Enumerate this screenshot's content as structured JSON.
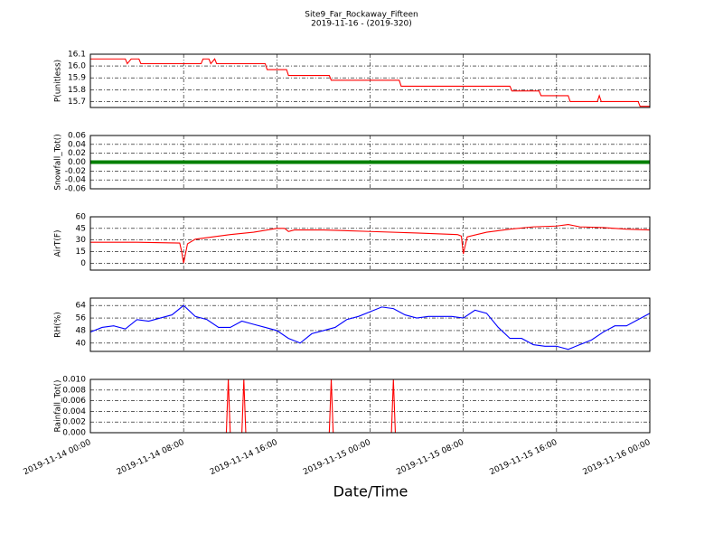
{
  "title": "Site9_Far_Rockaway_Fifteen",
  "subtitle": "2019-11-16 - (2019-320)",
  "x_label": "Date/Time",
  "chart_data": [
    {
      "type": "line",
      "y_label": "P(unitless)",
      "color": "#ff0000",
      "grid": true,
      "xlim": [
        "2019-11-14 00:00",
        "2019-11-16 00:00"
      ],
      "xticks": [
        "2019-11-14 00:00",
        "2019-11-14 08:00",
        "2019-11-14 16:00",
        "2019-11-15 00:00",
        "2019-11-15 08:00",
        "2019-11-15 16:00",
        "2019-11-16 00:00"
      ],
      "ylim": [
        15.65,
        16.1
      ],
      "yticks": [
        15.7,
        15.8,
        15.9,
        {
          "value": 16,
          "label": "16.0"
        },
        16.1
      ],
      "x": [
        "2019-11-14 00:00",
        "2019-11-14 03:00",
        "2019-11-14 03:10",
        "2019-11-14 03:30",
        "2019-11-14 04:10",
        "2019-11-14 04:20",
        "2019-11-14 09:30",
        "2019-11-14 09:40",
        "2019-11-14 10:10",
        "2019-11-14 10:20",
        "2019-11-14 10:40",
        "2019-11-14 10:50",
        "2019-11-14 15:00",
        "2019-11-14 15:10",
        "2019-11-14 16:50",
        "2019-11-14 17:00",
        "2019-11-14 20:30",
        "2019-11-14 20:40",
        "2019-11-15 02:30",
        "2019-11-15 02:40",
        "2019-11-15 12:00",
        "2019-11-15 12:10",
        "2019-11-15 14:30",
        "2019-11-15 14:40",
        "2019-11-15 17:00",
        "2019-11-15 17:10",
        "2019-11-15 19:30",
        "2019-11-15 19:40",
        "2019-11-15 19:50",
        "2019-11-15 23:00",
        "2019-11-15 23:10",
        "2019-11-16 00:00"
      ],
      "values": [
        16.06,
        16.06,
        16.02,
        16.06,
        16.06,
        16.02,
        16.02,
        16.06,
        16.06,
        16.02,
        16.06,
        16.02,
        16.02,
        15.97,
        15.97,
        15.92,
        15.92,
        15.88,
        15.88,
        15.83,
        15.83,
        15.79,
        15.79,
        15.75,
        15.75,
        15.7,
        15.7,
        15.75,
        15.7,
        15.7,
        15.66,
        15.66
      ]
    },
    {
      "type": "line",
      "y_label": "Snowfall_Tot()",
      "color": "#008000",
      "grid": true,
      "xlim": [
        "2019-11-14 00:00",
        "2019-11-16 00:00"
      ],
      "xticks": [
        "2019-11-14 00:00",
        "2019-11-14 08:00",
        "2019-11-14 16:00",
        "2019-11-15 00:00",
        "2019-11-15 08:00",
        "2019-11-15 16:00",
        "2019-11-16 00:00"
      ],
      "ylim": [
        -0.06,
        0.06
      ],
      "yticks": [
        -0.06,
        -0.04,
        -0.02,
        {
          "value": 0,
          "label": "0.00"
        },
        0.02,
        0.04,
        0.06
      ],
      "x": [
        "2019-11-14 00:00",
        "2019-11-14 04:00",
        "2019-11-14 08:00",
        "2019-11-14 12:00",
        "2019-11-14 16:00",
        "2019-11-14 20:00",
        "2019-11-15 00:00",
        "2019-11-15 04:00",
        "2019-11-15 08:00",
        "2019-11-15 12:00",
        "2019-11-15 16:00",
        "2019-11-15 20:00",
        "2019-11-16 00:00"
      ],
      "values": [
        0,
        0,
        0,
        0,
        0,
        0,
        0,
        0,
        0,
        0,
        0,
        0,
        0
      ]
    },
    {
      "type": "line",
      "y_label": "AirT(F)",
      "color": "#ff0000",
      "grid": true,
      "xlim": [
        "2019-11-14 00:00",
        "2019-11-16 00:00"
      ],
      "xticks": [
        "2019-11-14 00:00",
        "2019-11-14 08:00",
        "2019-11-14 16:00",
        "2019-11-15 00:00",
        "2019-11-15 08:00",
        "2019-11-15 16:00",
        "2019-11-16 00:00"
      ],
      "ylim": [
        -9,
        60
      ],
      "yticks": [
        0,
        15,
        30,
        45,
        60
      ],
      "x": [
        "2019-11-14 00:00",
        "2019-11-14 04:00",
        "2019-11-14 07:40",
        "2019-11-14 07:50",
        "2019-11-14 08:00",
        "2019-11-14 08:20",
        "2019-11-14 09:00",
        "2019-11-14 12:00",
        "2019-11-14 14:00",
        "2019-11-14 16:00",
        "2019-11-14 16:40",
        "2019-11-14 17:00",
        "2019-11-14 17:30",
        "2019-11-14 20:00",
        "2019-11-15 00:00",
        "2019-11-15 04:00",
        "2019-11-15 07:30",
        "2019-11-15 07:50",
        "2019-11-15 08:00",
        "2019-11-15 08:20",
        "2019-11-15 10:00",
        "2019-11-15 12:00",
        "2019-11-15 14:00",
        "2019-11-15 16:00",
        "2019-11-15 17:00",
        "2019-11-15 18:00",
        "2019-11-15 20:00",
        "2019-11-15 22:00",
        "2019-11-16 00:00"
      ],
      "values": [
        27,
        27,
        26,
        15,
        0,
        25,
        31,
        37,
        40,
        45,
        45,
        41,
        43,
        43,
        41,
        39,
        37,
        35,
        12,
        34,
        40,
        44,
        47,
        48,
        50,
        47,
        46,
        44,
        43
      ]
    },
    {
      "type": "line",
      "y_label": "RH(%)",
      "color": "#0000ff",
      "grid": true,
      "xlim": [
        "2019-11-14 00:00",
        "2019-11-16 00:00"
      ],
      "xticks": [
        "2019-11-14 00:00",
        "2019-11-14 08:00",
        "2019-11-14 16:00",
        "2019-11-15 00:00",
        "2019-11-15 08:00",
        "2019-11-15 16:00",
        "2019-11-16 00:00"
      ],
      "ylim": [
        34.7,
        68.7
      ],
      "yticks": [
        40,
        48,
        56,
        64
      ],
      "x": [
        "2019-11-14 00:00",
        "2019-11-14 01:00",
        "2019-11-14 02:00",
        "2019-11-14 03:00",
        "2019-11-14 04:00",
        "2019-11-14 05:00",
        "2019-11-14 06:00",
        "2019-11-14 07:00",
        "2019-11-14 08:00",
        "2019-11-14 09:00",
        "2019-11-14 10:00",
        "2019-11-14 11:00",
        "2019-11-14 12:00",
        "2019-11-14 13:00",
        "2019-11-14 14:00",
        "2019-11-14 15:00",
        "2019-11-14 16:00",
        "2019-11-14 17:00",
        "2019-11-14 18:00",
        "2019-11-14 19:00",
        "2019-11-14 20:00",
        "2019-11-14 21:00",
        "2019-11-14 22:00",
        "2019-11-14 23:00",
        "2019-11-15 00:00",
        "2019-11-15 01:00",
        "2019-11-15 02:00",
        "2019-11-15 03:00",
        "2019-11-15 04:00",
        "2019-11-15 05:00",
        "2019-11-15 06:00",
        "2019-11-15 07:00",
        "2019-11-15 08:00",
        "2019-11-15 09:00",
        "2019-11-15 10:00",
        "2019-11-15 11:00",
        "2019-11-15 12:00",
        "2019-11-15 13:00",
        "2019-11-15 14:00",
        "2019-11-15 15:00",
        "2019-11-15 16:00",
        "2019-11-15 17:00",
        "2019-11-15 18:00",
        "2019-11-15 19:00",
        "2019-11-15 20:00",
        "2019-11-15 21:00",
        "2019-11-15 22:00",
        "2019-11-15 23:00",
        "2019-11-16 00:00"
      ],
      "values": [
        47,
        50,
        51,
        49,
        55,
        54,
        56,
        58,
        64,
        57,
        55,
        50,
        50,
        54,
        52,
        50,
        48,
        43,
        40,
        46,
        48,
        50,
        55,
        57,
        60,
        63,
        62,
        58,
        56,
        57,
        57,
        57,
        56,
        61,
        59,
        50,
        43,
        43,
        39,
        38,
        38,
        36,
        39,
        42,
        47,
        51,
        51,
        55,
        59
      ]
    },
    {
      "type": "line",
      "y_label": "Rainfall_Tot()",
      "color": "#ff0000",
      "grid": true,
      "xlim": [
        "2019-11-14 00:00",
        "2019-11-16 00:00"
      ],
      "xticks": [
        "2019-11-14 00:00",
        "2019-11-14 08:00",
        "2019-11-14 16:00",
        "2019-11-15 00:00",
        "2019-11-15 08:00",
        "2019-11-15 16:00",
        "2019-11-16 00:00"
      ],
      "ylim": [
        0,
        0.01
      ],
      "yticks": [
        {
          "value": 0,
          "label": "0.000"
        },
        {
          "value": 0.002,
          "label": "0.002"
        },
        {
          "value": 0.004,
          "label": "0.004"
        },
        {
          "value": 0.006,
          "label": "0.006"
        },
        {
          "value": 0.008,
          "label": "0.008"
        },
        {
          "value": 0.01,
          "label": "0.010"
        }
      ],
      "x": [
        "2019-11-14 00:00",
        "2019-11-14 11:40",
        "2019-11-14 11:50",
        "2019-11-14 12:00",
        "2019-11-14 13:00",
        "2019-11-14 13:10",
        "2019-11-14 13:20",
        "2019-11-14 20:30",
        "2019-11-14 20:40",
        "2019-11-14 20:50",
        "2019-11-15 01:50",
        "2019-11-15 02:00",
        "2019-11-15 02:10",
        "2019-11-16 00:00"
      ],
      "values": [
        0,
        0,
        0.01,
        0,
        0,
        0.01,
        0,
        0,
        0.01,
        0,
        0,
        0.01,
        0,
        0
      ]
    }
  ]
}
